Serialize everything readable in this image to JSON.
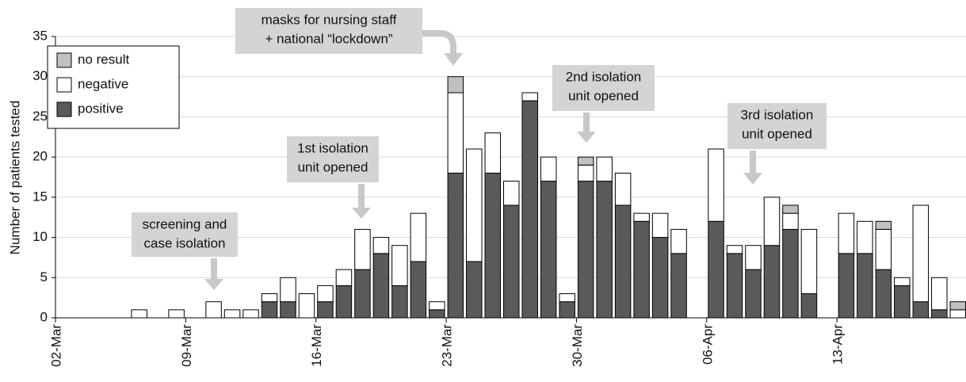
{
  "chart_data": {
    "type": "stacked-bar",
    "y_label": "Number of patients tested",
    "categories": [
      "02-Mar",
      null,
      null,
      null,
      null,
      null,
      null,
      "09-Mar",
      null,
      null,
      null,
      null,
      null,
      null,
      "16-Mar",
      null,
      null,
      null,
      null,
      null,
      null,
      "23-Mar",
      null,
      null,
      null,
      null,
      null,
      null,
      "30-Mar",
      null,
      null,
      null,
      null,
      null,
      null,
      "06-Apr",
      null,
      null,
      null,
      null,
      null,
      null,
      "13-Apr",
      null,
      null,
      null,
      null,
      null,
      null
    ],
    "series": [
      {
        "name": "positive",
        "color": "#5a5a5a",
        "values": [
          0,
          0,
          0,
          0,
          0,
          0,
          0,
          0,
          0,
          0,
          0,
          2,
          2,
          0,
          2,
          4,
          6,
          8,
          4,
          7,
          1,
          18,
          7,
          18,
          14,
          27,
          17,
          2,
          17,
          17,
          14,
          12,
          10,
          8,
          0,
          12,
          8,
          6,
          9,
          11,
          3,
          0,
          8,
          8,
          6,
          4,
          2,
          1,
          0
        ]
      },
      {
        "name": "negative",
        "color": "#ffffff",
        "values": [
          0,
          0,
          0,
          0,
          1,
          0,
          1,
          0,
          2,
          1,
          1,
          1,
          3,
          3,
          2,
          2,
          5,
          2,
          5,
          6,
          1,
          10,
          14,
          5,
          3,
          1,
          3,
          1,
          2,
          3,
          4,
          1,
          3,
          3,
          0,
          9,
          1,
          3,
          6,
          2,
          8,
          0,
          5,
          4,
          5,
          1,
          12,
          4,
          1
        ]
      },
      {
        "name": "no result",
        "color": "#c0c0c0",
        "values": [
          0,
          0,
          0,
          0,
          0,
          0,
          0,
          0,
          0,
          0,
          0,
          0,
          0,
          0,
          0,
          0,
          0,
          0,
          0,
          0,
          0,
          2,
          0,
          0,
          0,
          0,
          0,
          0,
          1,
          0,
          0,
          0,
          0,
          0,
          0,
          0,
          0,
          0,
          0,
          1,
          0,
          0,
          0,
          0,
          1,
          0,
          0,
          0,
          1
        ]
      }
    ],
    "ylim": [
      0,
      35
    ],
    "yticks": [
      0,
      5,
      10,
      15,
      20,
      25,
      30,
      35
    ],
    "grid": true,
    "annotations": [
      {
        "lines": [
          "screening and",
          "case isolation"
        ]
      },
      {
        "lines": [
          "1st isolation",
          "unit opened"
        ]
      },
      {
        "lines": [
          "masks for nursing staff",
          "+ national “lockdown”"
        ]
      },
      {
        "lines": [
          "2nd isolation",
          "unit opened"
        ]
      },
      {
        "lines": [
          "3rd isolation",
          "unit opened"
        ]
      }
    ]
  }
}
